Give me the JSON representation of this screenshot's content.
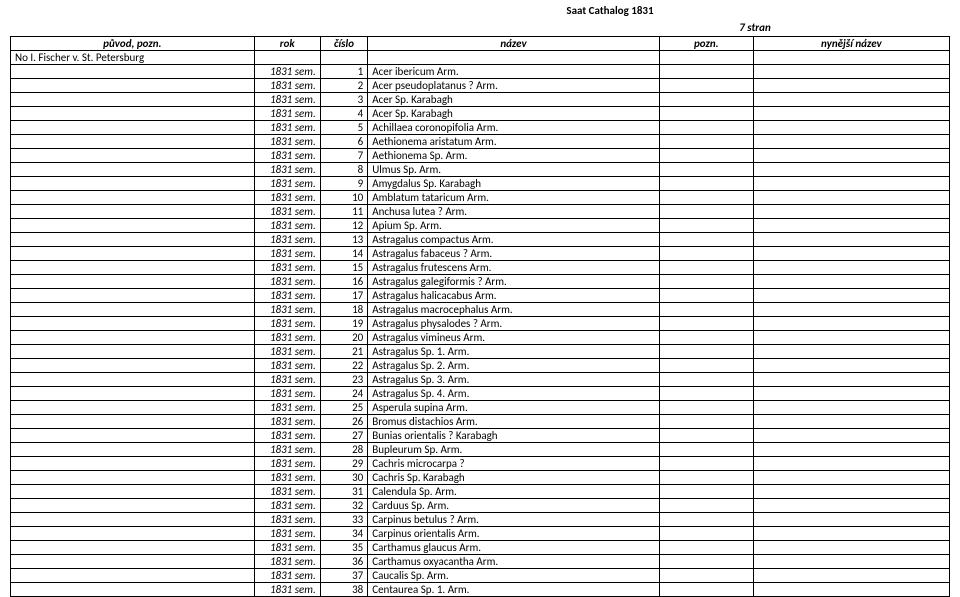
{
  "title": "Saat Cathalog 1831",
  "page_count_label": "7 stran",
  "headers": {
    "origin": "původ, pozn.",
    "year": "rok",
    "num": "číslo",
    "name": "název",
    "note": "pozn.",
    "cur": "nynější název"
  },
  "first_origin": "No I. Fischer v. St. Petersburg",
  "rows": [
    {
      "origin": "",
      "year": "1831 sem.",
      "num": "1",
      "name": "Acer ibericum Arm."
    },
    {
      "origin": "",
      "year": "1831 sem.",
      "num": "2",
      "name": "Acer pseudoplatanus ? Arm."
    },
    {
      "origin": "",
      "year": "1831 sem.",
      "num": "3",
      "name": "Acer Sp. Karabagh"
    },
    {
      "origin": "",
      "year": "1831 sem.",
      "num": "4",
      "name": "Acer Sp. Karabagh"
    },
    {
      "origin": "",
      "year": "1831 sem.",
      "num": "5",
      "name": "Achillaea coronopifolia Arm."
    },
    {
      "origin": "",
      "year": "1831 sem.",
      "num": "6",
      "name": "Aethionema aristatum Arm."
    },
    {
      "origin": "",
      "year": "1831 sem.",
      "num": "7",
      "name": "Aethionema Sp. Arm."
    },
    {
      "origin": "",
      "year": "1831 sem.",
      "num": "8",
      "name": "Ulmus Sp. Arm."
    },
    {
      "origin": "",
      "year": "1831 sem.",
      "num": "9",
      "name": "Amygdalus Sp. Karabagh"
    },
    {
      "origin": "",
      "year": "1831 sem.",
      "num": "10",
      "name": "Amblatum tataricum Arm."
    },
    {
      "origin": "",
      "year": "1831 sem.",
      "num": "11",
      "name": "Anchusa lutea ? Arm."
    },
    {
      "origin": "",
      "year": "1831 sem.",
      "num": "12",
      "name": "Apium Sp. Arm."
    },
    {
      "origin": "",
      "year": "1831 sem.",
      "num": "13",
      "name": "Astragalus compactus Arm."
    },
    {
      "origin": "",
      "year": "1831 sem.",
      "num": "14",
      "name": "Astragalus fabaceus ? Arm."
    },
    {
      "origin": "",
      "year": "1831 sem.",
      "num": "15",
      "name": "Astragalus frutescens Arm."
    },
    {
      "origin": "",
      "year": "1831 sem.",
      "num": "16",
      "name": "Astragalus galegiformis ? Arm."
    },
    {
      "origin": "",
      "year": "1831 sem.",
      "num": "17",
      "name": "Astragalus halicacabus Arm."
    },
    {
      "origin": "",
      "year": "1831 sem.",
      "num": "18",
      "name": "Astragalus macrocephalus Arm."
    },
    {
      "origin": "",
      "year": "1831 sem.",
      "num": "19",
      "name": "Astragalus physalodes ? Arm."
    },
    {
      "origin": "",
      "year": "1831 sem.",
      "num": "20",
      "name": "Astragalus vimineus  Arm."
    },
    {
      "origin": "",
      "year": "1831 sem.",
      "num": "21",
      "name": "Astragalus Sp. 1. Arm."
    },
    {
      "origin": "",
      "year": "1831 sem.",
      "num": "22",
      "name": "Astragalus Sp. 2. Arm."
    },
    {
      "origin": "",
      "year": "1831 sem.",
      "num": "23",
      "name": "Astragalus Sp. 3. Arm."
    },
    {
      "origin": "",
      "year": "1831 sem.",
      "num": "24",
      "name": "Astragalus Sp. 4. Arm."
    },
    {
      "origin": "",
      "year": "1831 sem.",
      "num": "25",
      "name": "Asperula supina Arm."
    },
    {
      "origin": "",
      "year": "1831 sem.",
      "num": "26",
      "name": "Bromus distachios Arm."
    },
    {
      "origin": "",
      "year": "1831 sem.",
      "num": "27",
      "name": "Bunias orientalis ? Karabagh"
    },
    {
      "origin": "",
      "year": "1831 sem.",
      "num": "28",
      "name": "Bupleurum Sp. Arm."
    },
    {
      "origin": "",
      "year": "1831 sem.",
      "num": "29",
      "name": "Cachris microcarpa ?"
    },
    {
      "origin": "",
      "year": "1831 sem.",
      "num": "30",
      "name": "Cachris Sp. Karabagh"
    },
    {
      "origin": "",
      "year": "1831 sem.",
      "num": "31",
      "name": "Calendula Sp. Arm."
    },
    {
      "origin": "",
      "year": "1831 sem.",
      "num": "32",
      "name": "Carduus Sp. Arm."
    },
    {
      "origin": "",
      "year": "1831 sem.",
      "num": "33",
      "name": "Carpinus betulus ? Arm."
    },
    {
      "origin": "",
      "year": "1831 sem.",
      "num": "34",
      "name": "Carpinus orientalis Arm."
    },
    {
      "origin": "",
      "year": "1831 sem.",
      "num": "35",
      "name": "Carthamus glaucus Arm."
    },
    {
      "origin": "",
      "year": "1831 sem.",
      "num": "36",
      "name": "Carthamus oxyacantha Arm."
    },
    {
      "origin": "",
      "year": "1831 sem.",
      "num": "37",
      "name": "Caucalis Sp. Arm."
    },
    {
      "origin": "",
      "year": "1831 sem.",
      "num": "38",
      "name": "Centaurea Sp. 1. Arm."
    }
  ]
}
